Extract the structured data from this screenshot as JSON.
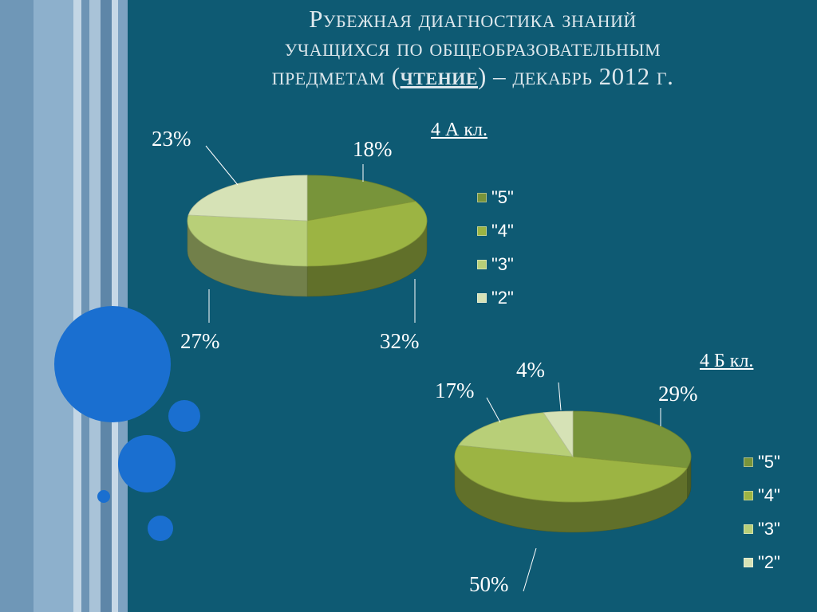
{
  "title": {
    "line1": "Рубежная диагностика знаний",
    "line2": "учащихся по общеобразовательным",
    "line3_prefix": "предметам (",
    "line3_subject": "чтение",
    "line3_suffix": ") – декабрь 2012 г."
  },
  "colors": {
    "background": "#0e5a73",
    "circle": "#1a6fd0",
    "slice_5": "#78943a",
    "slice_4": "#9cb443",
    "slice_3": "#b8cf78",
    "slice_2": "#d6e2b6"
  },
  "chart_data": [
    {
      "type": "pie",
      "title": "4 А кл.",
      "categories": [
        "\"5\"",
        "\"4\"",
        "\"3\"",
        "\"2\""
      ],
      "values": [
        18,
        32,
        27,
        23
      ],
      "labels": [
        "18%",
        "32%",
        "27%",
        "23%"
      ],
      "legend": "right",
      "style": "3d"
    },
    {
      "type": "pie",
      "title": "4 Б кл.",
      "categories": [
        "\"5\"",
        "\"4\"",
        "\"3\"",
        "\"2\""
      ],
      "values": [
        29,
        50,
        17,
        4
      ],
      "labels": [
        "29%",
        "50%",
        "17%",
        "4%"
      ],
      "legend": "right",
      "style": "3d"
    }
  ]
}
